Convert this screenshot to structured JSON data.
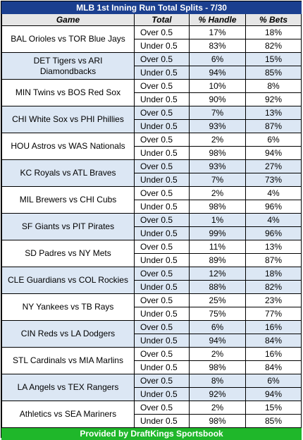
{
  "title": "MLB 1st Inning Run Total Splits - 7/30",
  "headers": {
    "game": "Game",
    "total": "Total",
    "handle": "% Handle",
    "bets": "% Bets"
  },
  "footer": "Provided by DraftKings Sportsbook",
  "colors": {
    "header_blue": "#1b3f8f",
    "header_gray": "#e6e6e6",
    "row_shade": "#dce7f4",
    "footer_green": "#1fb72a"
  },
  "games": [
    {
      "game": "BAL Orioles vs TOR Blue Jays",
      "over": {
        "total": "Over 0.5",
        "handle": "17%",
        "bets": "18%"
      },
      "under": {
        "total": "Under 0.5",
        "handle": "83%",
        "bets": "82%"
      }
    },
    {
      "game": "DET Tigers vs ARI Diamondbacks",
      "over": {
        "total": "Over 0.5",
        "handle": "6%",
        "bets": "15%"
      },
      "under": {
        "total": "Under 0.5",
        "handle": "94%",
        "bets": "85%"
      }
    },
    {
      "game": "MIN Twins vs BOS Red Sox",
      "over": {
        "total": "Over 0.5",
        "handle": "10%",
        "bets": "8%"
      },
      "under": {
        "total": "Under 0.5",
        "handle": "90%",
        "bets": "92%"
      }
    },
    {
      "game": "CHI White Sox vs PHI Phillies",
      "over": {
        "total": "Over 0.5",
        "handle": "7%",
        "bets": "13%"
      },
      "under": {
        "total": "Under 0.5",
        "handle": "93%",
        "bets": "87%"
      }
    },
    {
      "game": "HOU Astros vs WAS Nationals",
      "over": {
        "total": "Over 0.5",
        "handle": "2%",
        "bets": "6%"
      },
      "under": {
        "total": "Under 0.5",
        "handle": "98%",
        "bets": "94%"
      }
    },
    {
      "game": "KC Royals vs ATL Braves",
      "over": {
        "total": "Over 0.5",
        "handle": "93%",
        "bets": "27%"
      },
      "under": {
        "total": "Under 0.5",
        "handle": "7%",
        "bets": "73%"
      }
    },
    {
      "game": "MIL Brewers vs CHI Cubs",
      "over": {
        "total": "Over 0.5",
        "handle": "2%",
        "bets": "4%"
      },
      "under": {
        "total": "Under 0.5",
        "handle": "98%",
        "bets": "96%"
      }
    },
    {
      "game": "SF Giants vs PIT Pirates",
      "over": {
        "total": "Over 0.5",
        "handle": "1%",
        "bets": "4%"
      },
      "under": {
        "total": "Under 0.5",
        "handle": "99%",
        "bets": "96%"
      }
    },
    {
      "game": "SD Padres vs NY Mets",
      "over": {
        "total": "Over 0.5",
        "handle": "11%",
        "bets": "13%"
      },
      "under": {
        "total": "Under 0.5",
        "handle": "89%",
        "bets": "87%"
      }
    },
    {
      "game": "CLE Guardians vs COL Rockies",
      "over": {
        "total": "Over 0.5",
        "handle": "12%",
        "bets": "18%"
      },
      "under": {
        "total": "Under 0.5",
        "handle": "88%",
        "bets": "82%"
      }
    },
    {
      "game": "NY Yankees vs TB Rays",
      "over": {
        "total": "Over 0.5",
        "handle": "25%",
        "bets": "23%"
      },
      "under": {
        "total": "Under 0.5",
        "handle": "75%",
        "bets": "77%"
      }
    },
    {
      "game": "CIN Reds vs LA Dodgers",
      "over": {
        "total": "Over 0.5",
        "handle": "6%",
        "bets": "16%"
      },
      "under": {
        "total": "Under 0.5",
        "handle": "94%",
        "bets": "84%"
      }
    },
    {
      "game": "STL Cardinals vs MIA Marlins",
      "over": {
        "total": "Over 0.5",
        "handle": "2%",
        "bets": "16%"
      },
      "under": {
        "total": "Under 0.5",
        "handle": "98%",
        "bets": "84%"
      }
    },
    {
      "game": "LA Angels vs TEX Rangers",
      "over": {
        "total": "Over 0.5",
        "handle": "8%",
        "bets": "6%"
      },
      "under": {
        "total": "Under 0.5",
        "handle": "92%",
        "bets": "94%"
      }
    },
    {
      "game": "Athletics vs SEA Mariners",
      "over": {
        "total": "Over 0.5",
        "handle": "2%",
        "bets": "15%"
      },
      "under": {
        "total": "Under 0.5",
        "handle": "98%",
        "bets": "85%"
      }
    }
  ]
}
